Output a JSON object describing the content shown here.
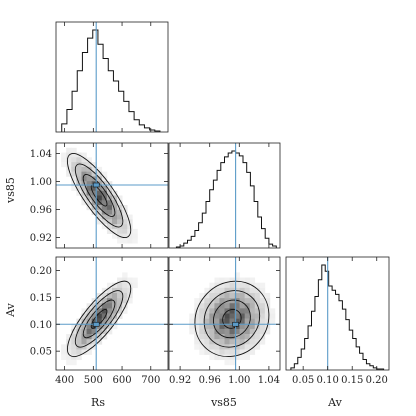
{
  "chart_data": {
    "type": "corner",
    "parameters": [
      "Rs",
      "vs85",
      "Av"
    ],
    "truths": {
      "Rs": 510,
      "vs85": 0.995,
      "Av": 0.1
    },
    "truth_color": "#5b9bc8",
    "axes": {
      "Rs": {
        "range": [
          370,
          760
        ],
        "ticks": [
          400,
          500,
          600,
          700
        ],
        "tick_labels": [
          "400",
          "500",
          "600",
          "700"
        ]
      },
      "vs85": {
        "range": [
          0.905,
          1.055
        ],
        "ticks": [
          0.92,
          0.96,
          1.0,
          1.04
        ],
        "tick_labels": [
          "0.92",
          "0.96",
          "1.00",
          "1.04"
        ]
      },
      "Av": {
        "range": [
          0.015,
          0.225
        ],
        "ticks": [
          0.05,
          0.1,
          0.15,
          0.2
        ],
        "tick_labels": [
          "0.05",
          "0.10",
          "0.15",
          "0.20"
        ]
      }
    },
    "histograms": {
      "Rs": {
        "edges": [
          390,
          408,
          426,
          444,
          462,
          480,
          498,
          516,
          534,
          552,
          570,
          588,
          606,
          624,
          642,
          660,
          678,
          696,
          714,
          732
        ],
        "counts": [
          8,
          22,
          40,
          60,
          78,
          92,
          100,
          86,
          72,
          60,
          50,
          40,
          30,
          20,
          12,
          7,
          4,
          2,
          1
        ]
      },
      "vs85": {
        "edges": [
          0.915,
          0.92,
          0.925,
          0.93,
          0.935,
          0.94,
          0.945,
          0.95,
          0.955,
          0.96,
          0.965,
          0.97,
          0.975,
          0.98,
          0.985,
          0.99,
          0.995,
          1.0,
          1.005,
          1.01,
          1.015,
          1.02,
          1.025,
          1.03,
          1.035,
          1.04,
          1.045,
          1.05
        ],
        "counts": [
          1,
          2,
          5,
          8,
          12,
          18,
          26,
          36,
          48,
          60,
          70,
          80,
          88,
          94,
          98,
          100,
          98,
          95,
          88,
          78,
          64,
          48,
          32,
          20,
          10,
          4,
          2
        ]
      },
      "Av": {
        "edges": [
          0.025,
          0.032,
          0.039,
          0.046,
          0.053,
          0.06,
          0.067,
          0.074,
          0.081,
          0.088,
          0.095,
          0.102,
          0.109,
          0.116,
          0.123,
          0.13,
          0.137,
          0.144,
          0.151,
          0.158,
          0.165,
          0.172,
          0.179,
          0.186,
          0.193,
          0.2,
          0.207,
          0.214
        ],
        "counts": [
          2,
          6,
          12,
          20,
          30,
          42,
          56,
          70,
          86,
          100,
          94,
          80,
          76,
          72,
          66,
          58,
          48,
          38,
          30,
          22,
          16,
          10,
          6,
          4,
          2,
          1,
          1
        ]
      }
    },
    "densities": {
      "vs85_vs_Rs": {
        "center": [
          520,
          0.98
        ],
        "sd": [
          55,
          0.03
        ],
        "rho": -0.82
      },
      "Av_vs_Rs": {
        "center": [
          520,
          0.11
        ],
        "sd": [
          55,
          0.035
        ],
        "rho": 0.8
      },
      "Av_vs_vs85": {
        "center": [
          0.99,
          0.11
        ],
        "sd": [
          0.025,
          0.035
        ],
        "rho": 0.1
      }
    }
  }
}
